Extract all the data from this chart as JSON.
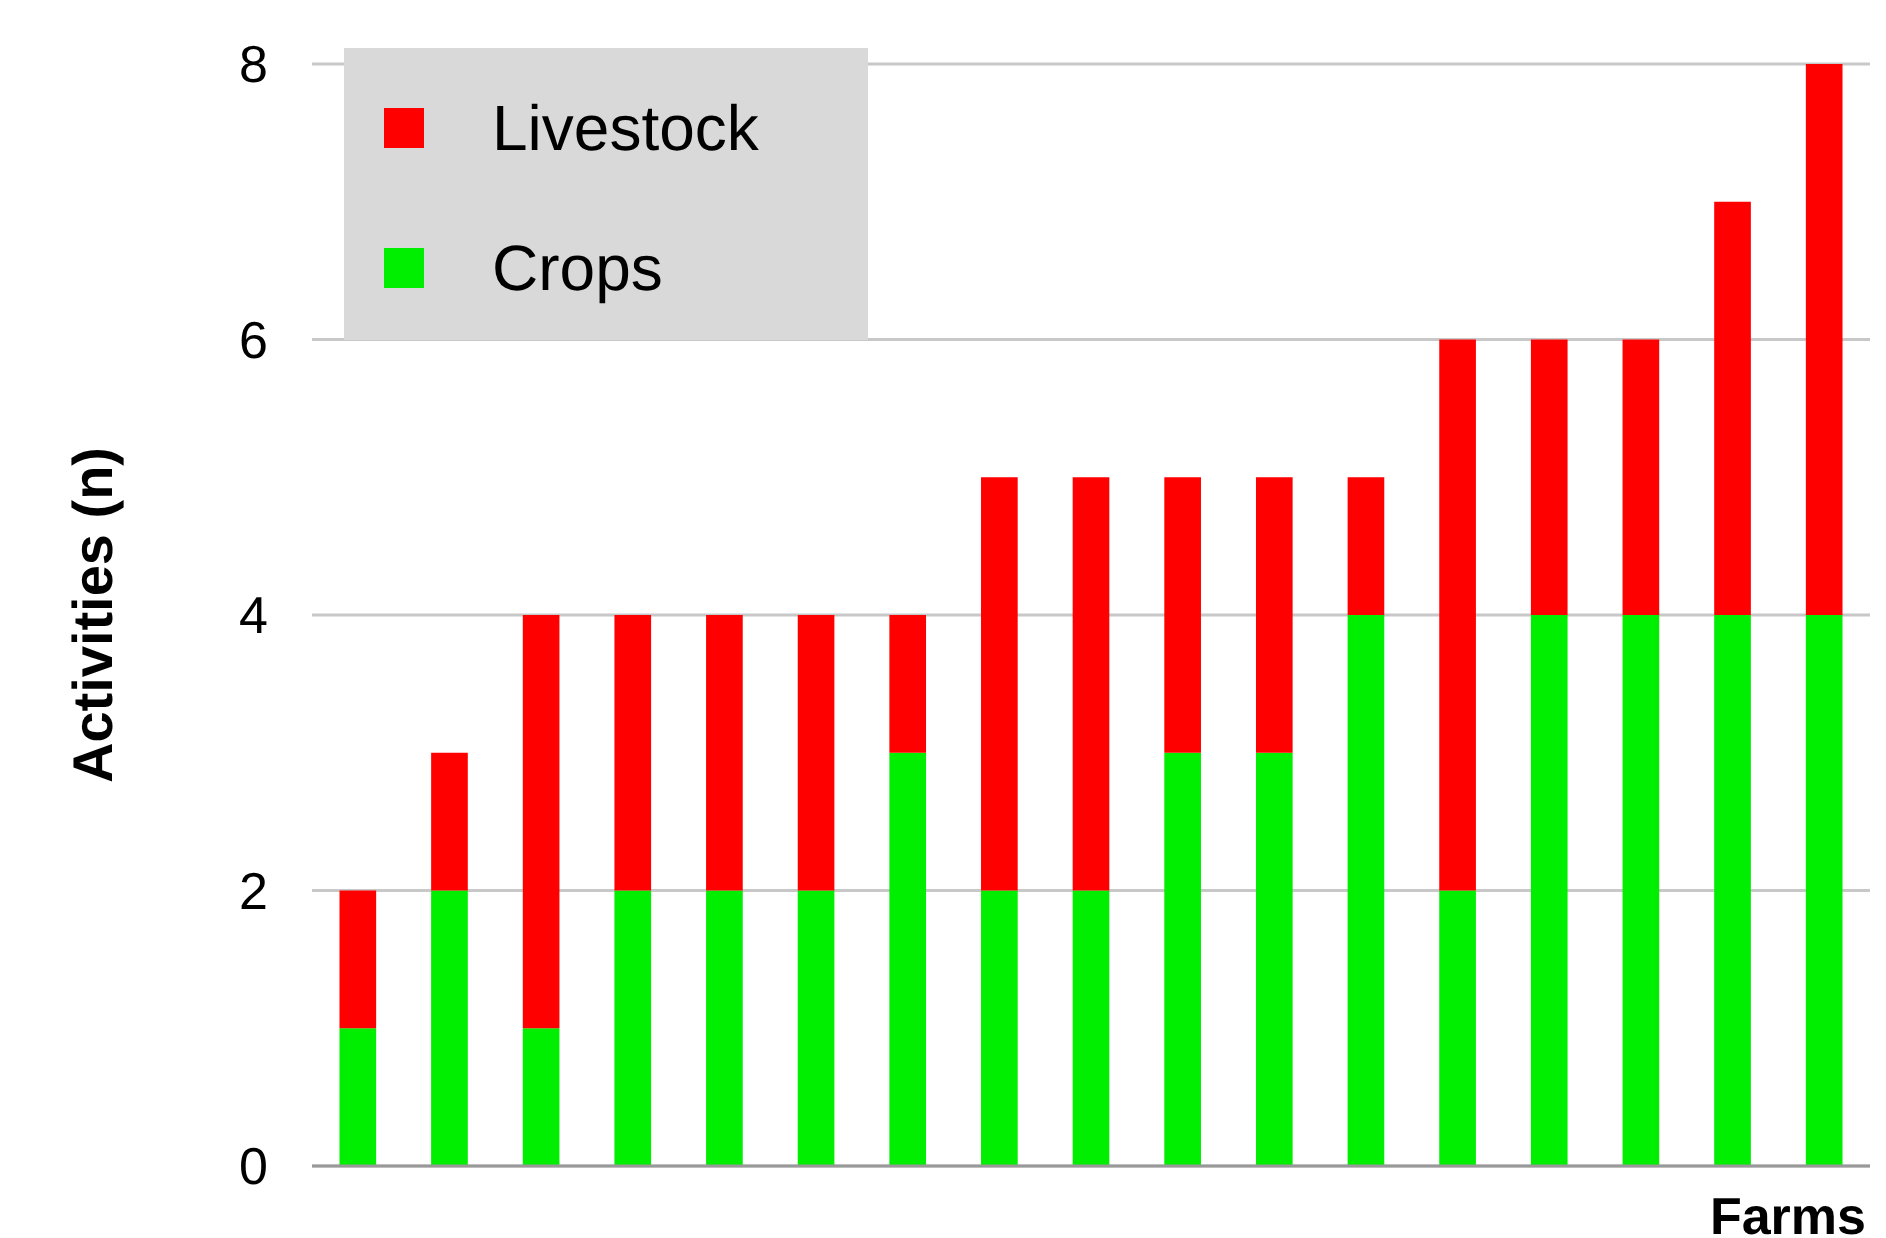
{
  "chart_data": {
    "type": "bar",
    "stacked": true,
    "xlabel": "Farms",
    "ylabel": "Activities (n)",
    "categories": [
      null,
      null,
      null,
      null,
      null,
      null,
      null,
      null,
      null,
      null,
      null,
      null,
      null,
      null,
      null,
      null,
      null
    ],
    "series": [
      {
        "name": "Crops",
        "color": "#00ee00",
        "values": [
          1,
          2,
          1,
          2,
          2,
          2,
          3,
          2,
          2,
          3,
          3,
          4,
          2,
          4,
          4,
          4,
          4
        ]
      },
      {
        "name": "Livestock",
        "color": "#ff0000",
        "values": [
          1,
          1,
          3,
          2,
          2,
          2,
          1,
          3,
          3,
          2,
          2,
          1,
          4,
          2,
          2,
          3,
          4
        ]
      }
    ],
    "ylim": [
      0,
      8
    ],
    "yticks": [
      0,
      2,
      4,
      6,
      8
    ],
    "grid": "y",
    "legend": "top left"
  }
}
